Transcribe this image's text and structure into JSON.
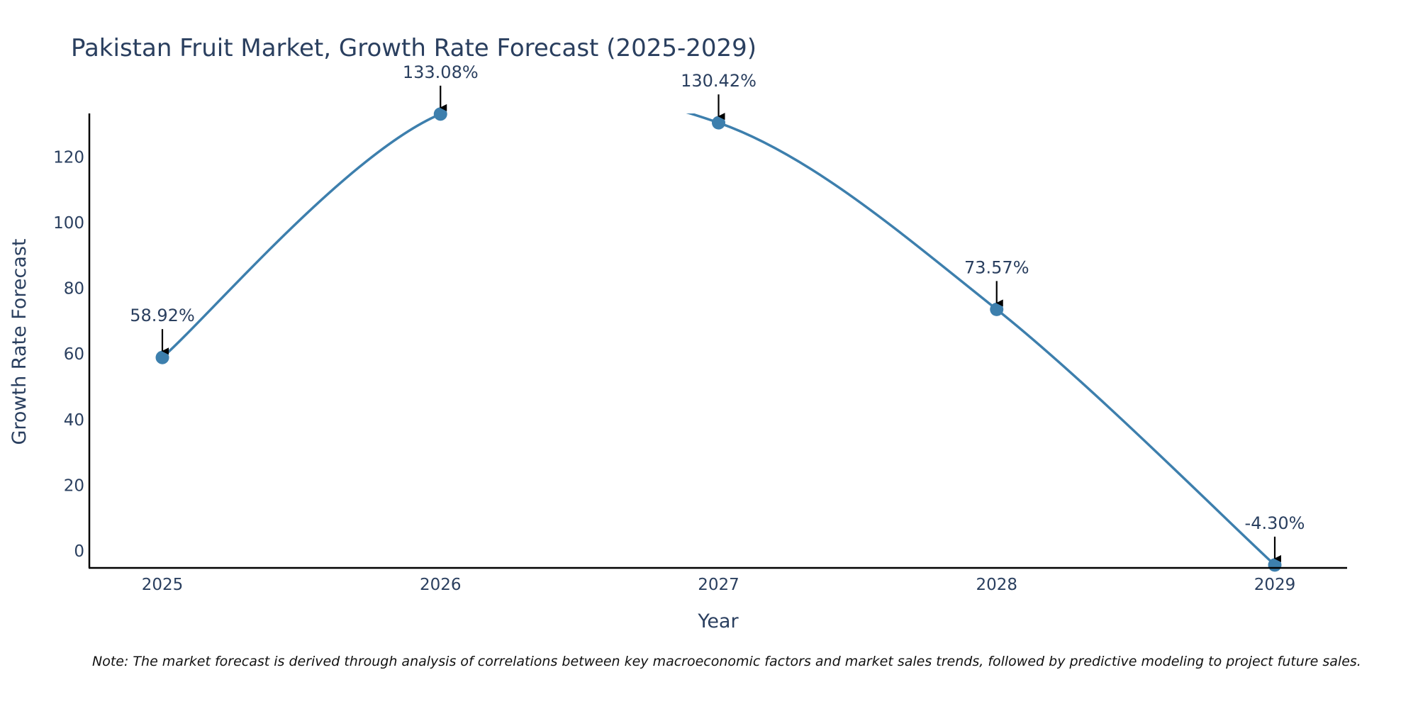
{
  "chart_data": {
    "type": "line",
    "title": "Pakistan Fruit Market, Growth Rate Forecast (2025-2029)",
    "xlabel": "Year",
    "ylabel": "Growth Rate Forecast",
    "categories": [
      "2025",
      "2026",
      "2027",
      "2028",
      "2029"
    ],
    "values": [
      58.92,
      133.08,
      130.42,
      73.57,
      -4.3
    ],
    "labels": [
      "58.92%",
      "133.08%",
      "130.42%",
      "73.57%",
      "-4.30%"
    ],
    "ylim": [
      -5,
      133.08
    ],
    "yticks": [
      0,
      20,
      40,
      60,
      80,
      100,
      120
    ],
    "grid": false,
    "line_shape": "spline",
    "color": "#3d7fad",
    "note": "Note: The market forecast is derived through analysis of correlations between key macroeconomic factors and market sales trends, followed by predictive modeling to project future sales."
  }
}
